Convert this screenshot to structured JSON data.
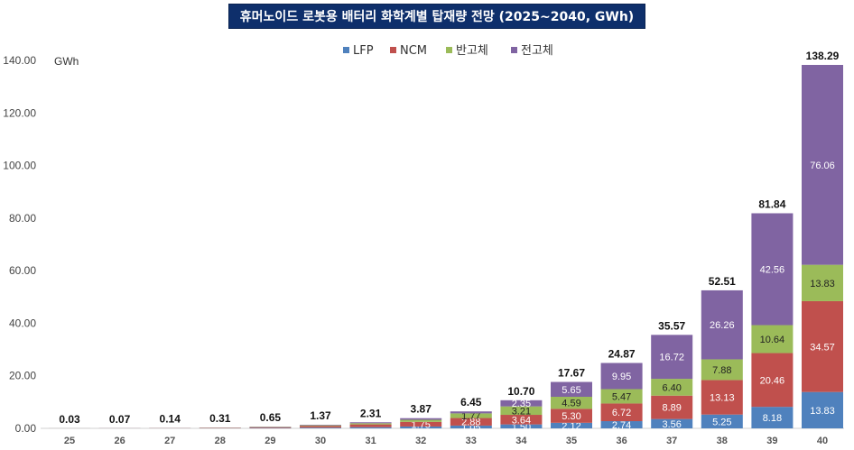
{
  "chart_data": {
    "type": "bar",
    "stacked": true,
    "title": "휴머노이드 로봇용 배터리 화학계별 탑재량 전망 (2025~2040, GWh)",
    "y_unit": "GWh",
    "ylim": [
      0,
      140
    ],
    "y_ticks": [
      "0.00",
      "20.00",
      "40.00",
      "60.00",
      "80.00",
      "100.00",
      "120.00",
      "140.00"
    ],
    "y_tick_values": [
      0,
      20,
      40,
      60,
      80,
      100,
      120,
      140
    ],
    "categories": [
      "25",
      "26",
      "27",
      "28",
      "29",
      "30",
      "31",
      "32",
      "33",
      "34",
      "35",
      "36",
      "37",
      "38",
      "39",
      "40"
    ],
    "totals": [
      0.03,
      0.07,
      0.14,
      0.31,
      0.65,
      1.37,
      2.31,
      3.87,
      6.45,
      10.7,
      17.67,
      24.87,
      35.57,
      52.51,
      81.84,
      138.29
    ],
    "total_labels": [
      "0.03",
      "0.07",
      "0.14",
      "0.31",
      "0.65",
      "1.37",
      "2.31",
      "3.87",
      "6.45",
      "10.70",
      "17.67",
      "24.87",
      "35.57",
      "52.51",
      "81.84",
      "138.29"
    ],
    "legend_position": "top",
    "grid": false,
    "series": [
      {
        "name": "LFP",
        "color": "#4f81bd",
        "label_color": "#ffffff",
        "values": [
          0.01,
          0.02,
          0.04,
          0.08,
          0.15,
          0.28,
          0.45,
          0.7,
          1.05,
          1.5,
          2.12,
          2.74,
          3.56,
          5.25,
          8.18,
          13.83
        ],
        "labels": [
          "",
          "",
          "",
          "",
          "",
          "",
          "",
          "",
          "1.05",
          "1.50",
          "2.12",
          "2.74",
          "3.56",
          "5.25",
          "8.18",
          "13.83"
        ]
      },
      {
        "name": "NCM",
        "color": "#c0504d",
        "label_color": "#ffffff",
        "values": [
          0.01,
          0.03,
          0.06,
          0.13,
          0.28,
          0.62,
          1.05,
          1.75,
          2.88,
          3.64,
          5.3,
          6.72,
          8.89,
          13.13,
          20.46,
          34.57
        ],
        "labels": [
          "",
          "",
          "",
          "",
          "",
          "",
          "",
          "1.75",
          "2.88",
          "3.64",
          "5.30",
          "6.72",
          "8.89",
          "13.13",
          "20.46",
          "34.57"
        ]
      },
      {
        "name": "반고체",
        "color": "#9bbb59",
        "label_color": "#222222",
        "values": [
          0.01,
          0.01,
          0.02,
          0.06,
          0.12,
          0.26,
          0.45,
          0.8,
          1.77,
          3.21,
          4.59,
          5.47,
          6.4,
          7.88,
          10.64,
          13.83
        ],
        "labels": [
          "",
          "",
          "",
          "",
          "",
          "",
          "",
          "",
          "1.77",
          "3.21",
          "4.59",
          "5.47",
          "6.40",
          "7.88",
          "10.64",
          "13.83"
        ]
      },
      {
        "name": "전고체",
        "color": "#8064a2",
        "label_color": "#ffffff",
        "values": [
          0.0,
          0.01,
          0.02,
          0.04,
          0.1,
          0.21,
          0.36,
          0.62,
          0.75,
          2.35,
          5.65,
          9.95,
          16.72,
          26.26,
          42.56,
          76.06
        ],
        "labels": [
          "",
          "",
          "",
          "",
          "",
          "",
          "",
          "",
          "",
          "2.35",
          "5.65",
          "9.95",
          "16.72",
          "26.26",
          "42.56",
          "76.06"
        ]
      }
    ]
  }
}
